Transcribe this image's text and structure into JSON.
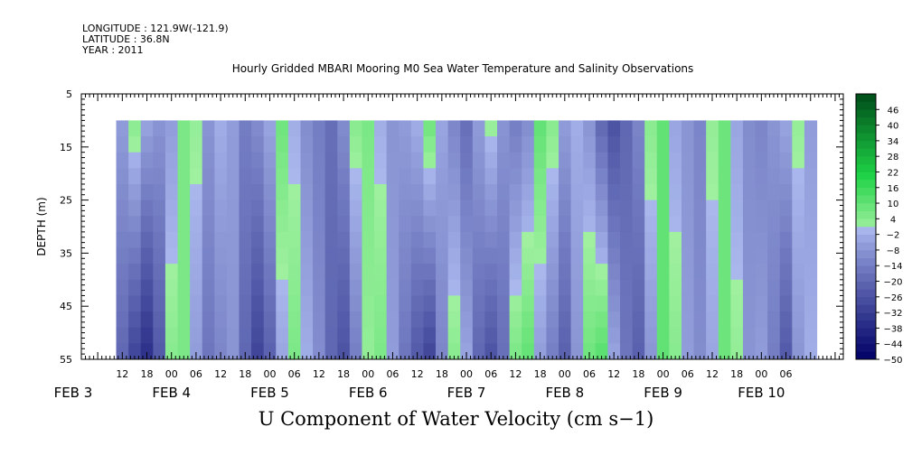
{
  "header": {
    "longitude": "LONGITUDE : 121.9W(-121.9)",
    "latitude": "LATITUDE : 36.8N",
    "year": "YEAR : 2011"
  },
  "chart_data": {
    "type": "heatmap",
    "title": "Hourly Gridded MBARI Mooring M0 Sea Water Temperature and Salinity Observations",
    "xlabel": "",
    "ylabel": "DEPTH (m)",
    "bottom_title": "U Component of Water Velocity (cm s−1)",
    "x_tick_labels": [
      "12",
      "18",
      "00",
      "06",
      "12",
      "18",
      "00",
      "06",
      "12",
      "18",
      "00",
      "06",
      "12",
      "18",
      "00",
      "06",
      "12",
      "18",
      "00",
      "06",
      "12",
      "18",
      "00",
      "06",
      "12",
      "18",
      "00",
      "06"
    ],
    "x_date_labels": [
      "FEB  3",
      "FEB  4",
      "FEB  5",
      "FEB  6",
      "FEB  7",
      "FEB  8",
      "FEB  9",
      "FEB 10"
    ],
    "y_ticks": [
      5,
      15,
      25,
      35,
      45,
      55
    ],
    "ylim": [
      55,
      5
    ],
    "data_depth_range": [
      10,
      55
    ],
    "colorbar_levels": [
      46,
      40,
      34,
      28,
      22,
      16,
      10,
      4,
      -2,
      -8,
      -14,
      -20,
      -26,
      -32,
      -38,
      -44,
      -50
    ],
    "colorbar_range": [
      -50,
      52
    ],
    "color_low": "#000066",
    "color_mid": "#aab8ee",
    "color_high": "#004d1a",
    "u_profiles": {
      "time_hours_from_feb3_00": [
        12,
        15,
        18,
        21,
        24,
        27,
        30,
        33,
        36,
        39,
        42,
        45,
        48,
        51,
        54,
        57,
        60,
        63,
        66,
        69,
        72,
        75,
        78,
        81,
        84,
        87,
        90,
        93,
        96,
        99,
        102,
        105,
        108,
        111,
        114,
        117,
        120,
        123,
        126,
        129,
        132,
        135,
        138,
        141,
        144,
        147,
        150,
        153,
        156,
        159,
        162,
        165,
        168,
        171,
        174,
        177,
        180
      ],
      "surface_u": [
        -6,
        4,
        -4,
        -8,
        -6,
        6,
        2,
        -8,
        -2,
        -6,
        -14,
        -10,
        -4,
        8,
        -2,
        -10,
        -14,
        -18,
        -10,
        4,
        6,
        -2,
        -8,
        -6,
        -2,
        8,
        -4,
        -12,
        -18,
        -6,
        2,
        -8,
        -14,
        -10,
        10,
        4,
        -6,
        -2,
        -8,
        -20,
        -26,
        -20,
        -12,
        4,
        10,
        -4,
        -8,
        -12,
        2,
        8,
        -4,
        -10,
        -12,
        -8,
        -4,
        2,
        -6
      ],
      "bottom_u": [
        -20,
        -30,
        -36,
        -24,
        4,
        6,
        -6,
        -16,
        -12,
        -8,
        -20,
        -30,
        -22,
        -4,
        6,
        -2,
        -10,
        -20,
        -26,
        -14,
        2,
        6,
        -6,
        -16,
        -24,
        -30,
        -12,
        4,
        -4,
        -20,
        -26,
        -18,
        6,
        10,
        -6,
        -14,
        -22,
        -8,
        8,
        12,
        -4,
        -16,
        -22,
        -8,
        10,
        4,
        -6,
        -10,
        -4,
        8,
        2,
        -8,
        -6,
        -14,
        -24,
        -8,
        -2
      ]
    }
  }
}
